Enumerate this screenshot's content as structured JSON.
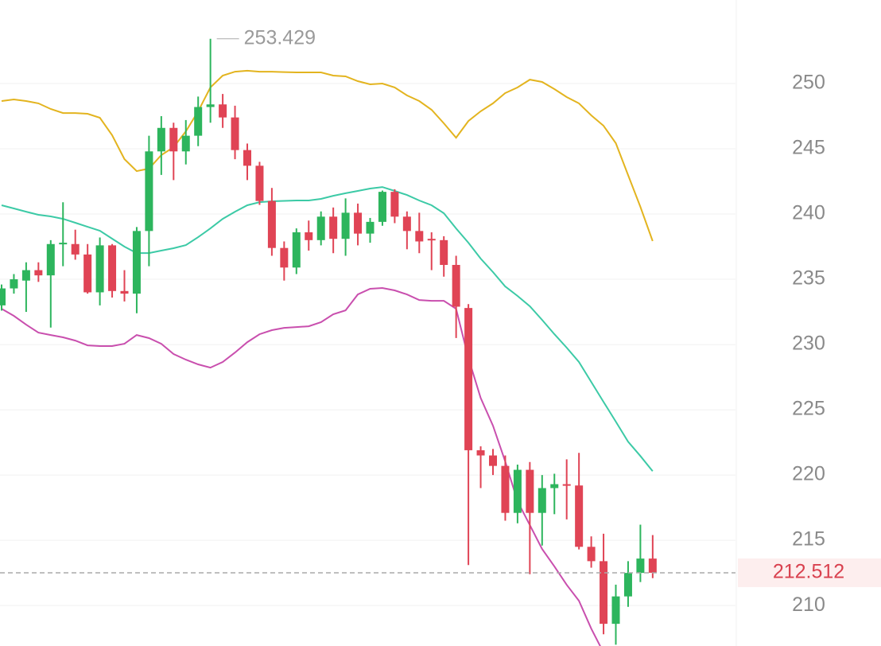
{
  "chart_data": {
    "type": "candlestick",
    "open": [
      233.0,
      234.3,
      234.9,
      235.7,
      235.3,
      237.7,
      237.7,
      236.9,
      234.0,
      237.6,
      234.1,
      233.9,
      238.7,
      244.8,
      246.6,
      244.8,
      246.0,
      248.2,
      248.4,
      247.4,
      244.9,
      243.7,
      241.0,
      237.4,
      235.9,
      238.6,
      238.0,
      239.8,
      238.1,
      240.1,
      238.5,
      239.4,
      241.7,
      239.8,
      238.7,
      238.1,
      238.0,
      236.1,
      232.8,
      221.9,
      221.5,
      220.7,
      217.1,
      220.4,
      217.1,
      219.0,
      219.3,
      219.2,
      214.5,
      213.4,
      208.6,
      210.7,
      212.5,
      213.6
    ],
    "high": [
      234.6,
      235.4,
      236.3,
      236.3,
      238.0,
      240.9,
      238.8,
      237.7,
      238.2,
      237.7,
      235.7,
      239.0,
      246.0,
      247.5,
      247.0,
      247.2,
      249.0,
      253.429,
      249.2,
      248.3,
      245.4,
      244.0,
      242.0,
      237.9,
      238.9,
      239.5,
      240.2,
      240.5,
      241.2,
      240.8,
      239.7,
      241.8,
      241.9,
      240.2,
      240.1,
      238.6,
      238.3,
      236.8,
      233.1,
      222.2,
      222.0,
      221.5,
      220.8,
      221.0,
      220.0,
      220.1,
      221.2,
      221.7,
      215.3,
      215.5,
      211.6,
      213.4,
      216.2,
      215.4
    ],
    "low": [
      232.6,
      233.9,
      232.5,
      234.8,
      231.3,
      236.0,
      236.5,
      233.9,
      233.0,
      233.6,
      233.3,
      232.4,
      236.0,
      243.0,
      242.6,
      243.8,
      245.2,
      247.0,
      246.6,
      244.2,
      242.6,
      240.7,
      236.8,
      234.9,
      235.4,
      237.2,
      237.6,
      237.0,
      236.8,
      237.6,
      237.8,
      239.1,
      239.3,
      237.3,
      237.0,
      235.7,
      235.2,
      230.5,
      213.1,
      219.0,
      220.0,
      216.5,
      216.3,
      212.4,
      214.6,
      217.0,
      216.6,
      214.3,
      212.9,
      207.8,
      207.0,
      209.9,
      211.8,
      212.1
    ],
    "close": [
      234.3,
      235.0,
      235.7,
      235.3,
      237.7,
      237.8,
      236.9,
      234.0,
      237.6,
      234.1,
      233.9,
      238.7,
      244.8,
      246.6,
      244.8,
      246.0,
      248.2,
      248.4,
      247.4,
      244.9,
      243.7,
      241.0,
      237.4,
      235.9,
      238.6,
      238.0,
      239.8,
      238.1,
      240.1,
      238.5,
      239.4,
      241.7,
      239.8,
      238.7,
      237.9,
      238.0,
      236.1,
      232.9,
      221.9,
      221.5,
      220.7,
      217.1,
      220.4,
      217.1,
      219.0,
      219.3,
      219.2,
      214.5,
      213.4,
      208.6,
      210.7,
      212.5,
      213.6,
      212.512
    ],
    "up_color": "#2db55d",
    "down_color": "#e04455",
    "overlays": [
      {
        "color": "#e3b41f",
        "values": [
          248.66,
          248.78,
          248.66,
          248.48,
          248.05,
          247.74,
          247.74,
          247.68,
          247.38,
          246.04,
          244.21,
          243.29,
          243.48,
          244.51,
          245.12,
          246.34,
          247.87,
          249.7,
          250.61,
          250.91,
          250.98,
          250.91,
          250.91,
          250.88,
          250.85,
          250.85,
          250.85,
          250.61,
          250.55,
          250.18,
          249.94,
          250.0,
          249.7,
          249.09,
          248.66,
          247.99,
          246.95,
          245.85,
          247.13,
          247.87,
          248.48,
          249.27,
          249.7,
          250.3,
          250.12,
          249.57,
          248.96,
          248.48,
          247.56,
          246.77,
          245.43,
          242.99,
          240.55,
          237.93
        ]
      },
      {
        "color": "#3ccaa6",
        "values": [
          240.67,
          240.43,
          240.18,
          239.94,
          239.82,
          239.63,
          239.33,
          239.02,
          238.72,
          238.11,
          237.5,
          237.01,
          237.01,
          237.2,
          237.38,
          237.62,
          238.23,
          238.9,
          239.63,
          240.18,
          240.67,
          240.91,
          240.98,
          241.01,
          241.04,
          241.04,
          241.16,
          241.4,
          241.59,
          241.77,
          241.95,
          242.07,
          241.77,
          241.46,
          241.04,
          240.67,
          240.06,
          238.9,
          237.8,
          236.59,
          235.55,
          234.45,
          233.72,
          232.93,
          231.89,
          230.79,
          229.76,
          228.66,
          227.13,
          225.61,
          224.09,
          222.56,
          221.46,
          220.3
        ]
      },
      {
        "color": "#c94fae",
        "values": [
          232.74,
          232.2,
          231.52,
          230.91,
          230.73,
          230.55,
          230.3,
          229.94,
          229.88,
          229.88,
          230.06,
          230.73,
          230.49,
          230.06,
          229.27,
          228.84,
          228.48,
          228.23,
          228.66,
          229.39,
          230.18,
          230.79,
          231.1,
          231.28,
          231.34,
          231.4,
          231.71,
          232.32,
          232.62,
          233.84,
          234.27,
          234.33,
          234.15,
          233.84,
          233.41,
          233.35,
          233.35,
          232.74,
          228.96,
          225.91,
          223.78,
          221.04,
          217.99,
          216.16,
          214.33,
          212.99,
          211.59,
          210.37,
          208.23,
          206.4,
          null,
          null,
          null,
          null
        ]
      }
    ],
    "high_label": "253.429",
    "last_price_label": "212.512",
    "ylim": [
      206.9,
      256.4
    ],
    "yticks": [
      210,
      215,
      220,
      225,
      230,
      235,
      240,
      245,
      250
    ],
    "grid": true
  }
}
